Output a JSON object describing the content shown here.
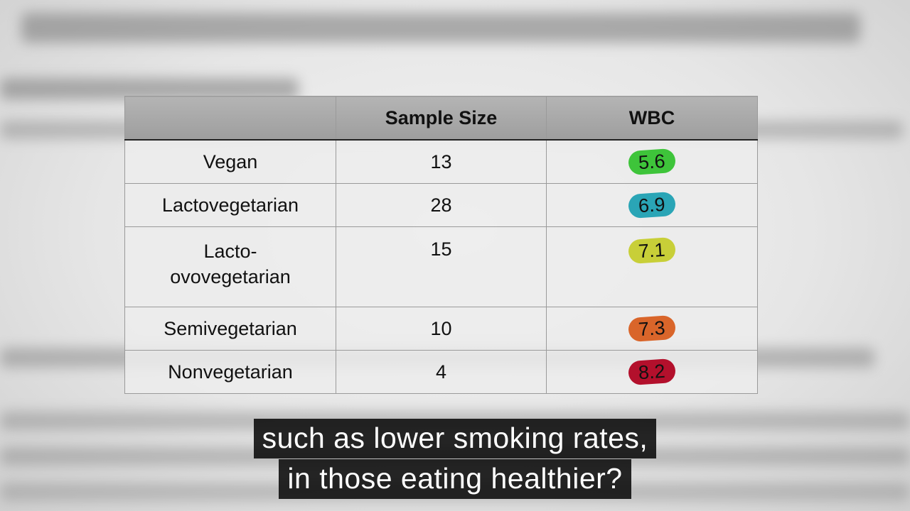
{
  "table": {
    "columns": [
      "Sample Size",
      "WBC"
    ],
    "rows": [
      {
        "label": "Vegan",
        "sample_size": 13,
        "wbc": 5.6,
        "highlight": "#3ec43a"
      },
      {
        "label": "Lactovegetarian",
        "sample_size": 28,
        "wbc": 6.9,
        "highlight": "#2aa5b6"
      },
      {
        "label": "Lacto-ovovegetarian",
        "sample_size": 15,
        "wbc": 7.1,
        "highlight": "#c8cf38"
      },
      {
        "label": "Semivegetarian",
        "sample_size": 10,
        "wbc": 7.3,
        "highlight": "#d9652a"
      },
      {
        "label": "Nonvegetarian",
        "sample_size": 4,
        "wbc": 8.2,
        "highlight": "#b3102c"
      }
    ]
  },
  "caption": {
    "lines": [
      "such as lower smoking rates,",
      "in those eating healthier?"
    ]
  }
}
